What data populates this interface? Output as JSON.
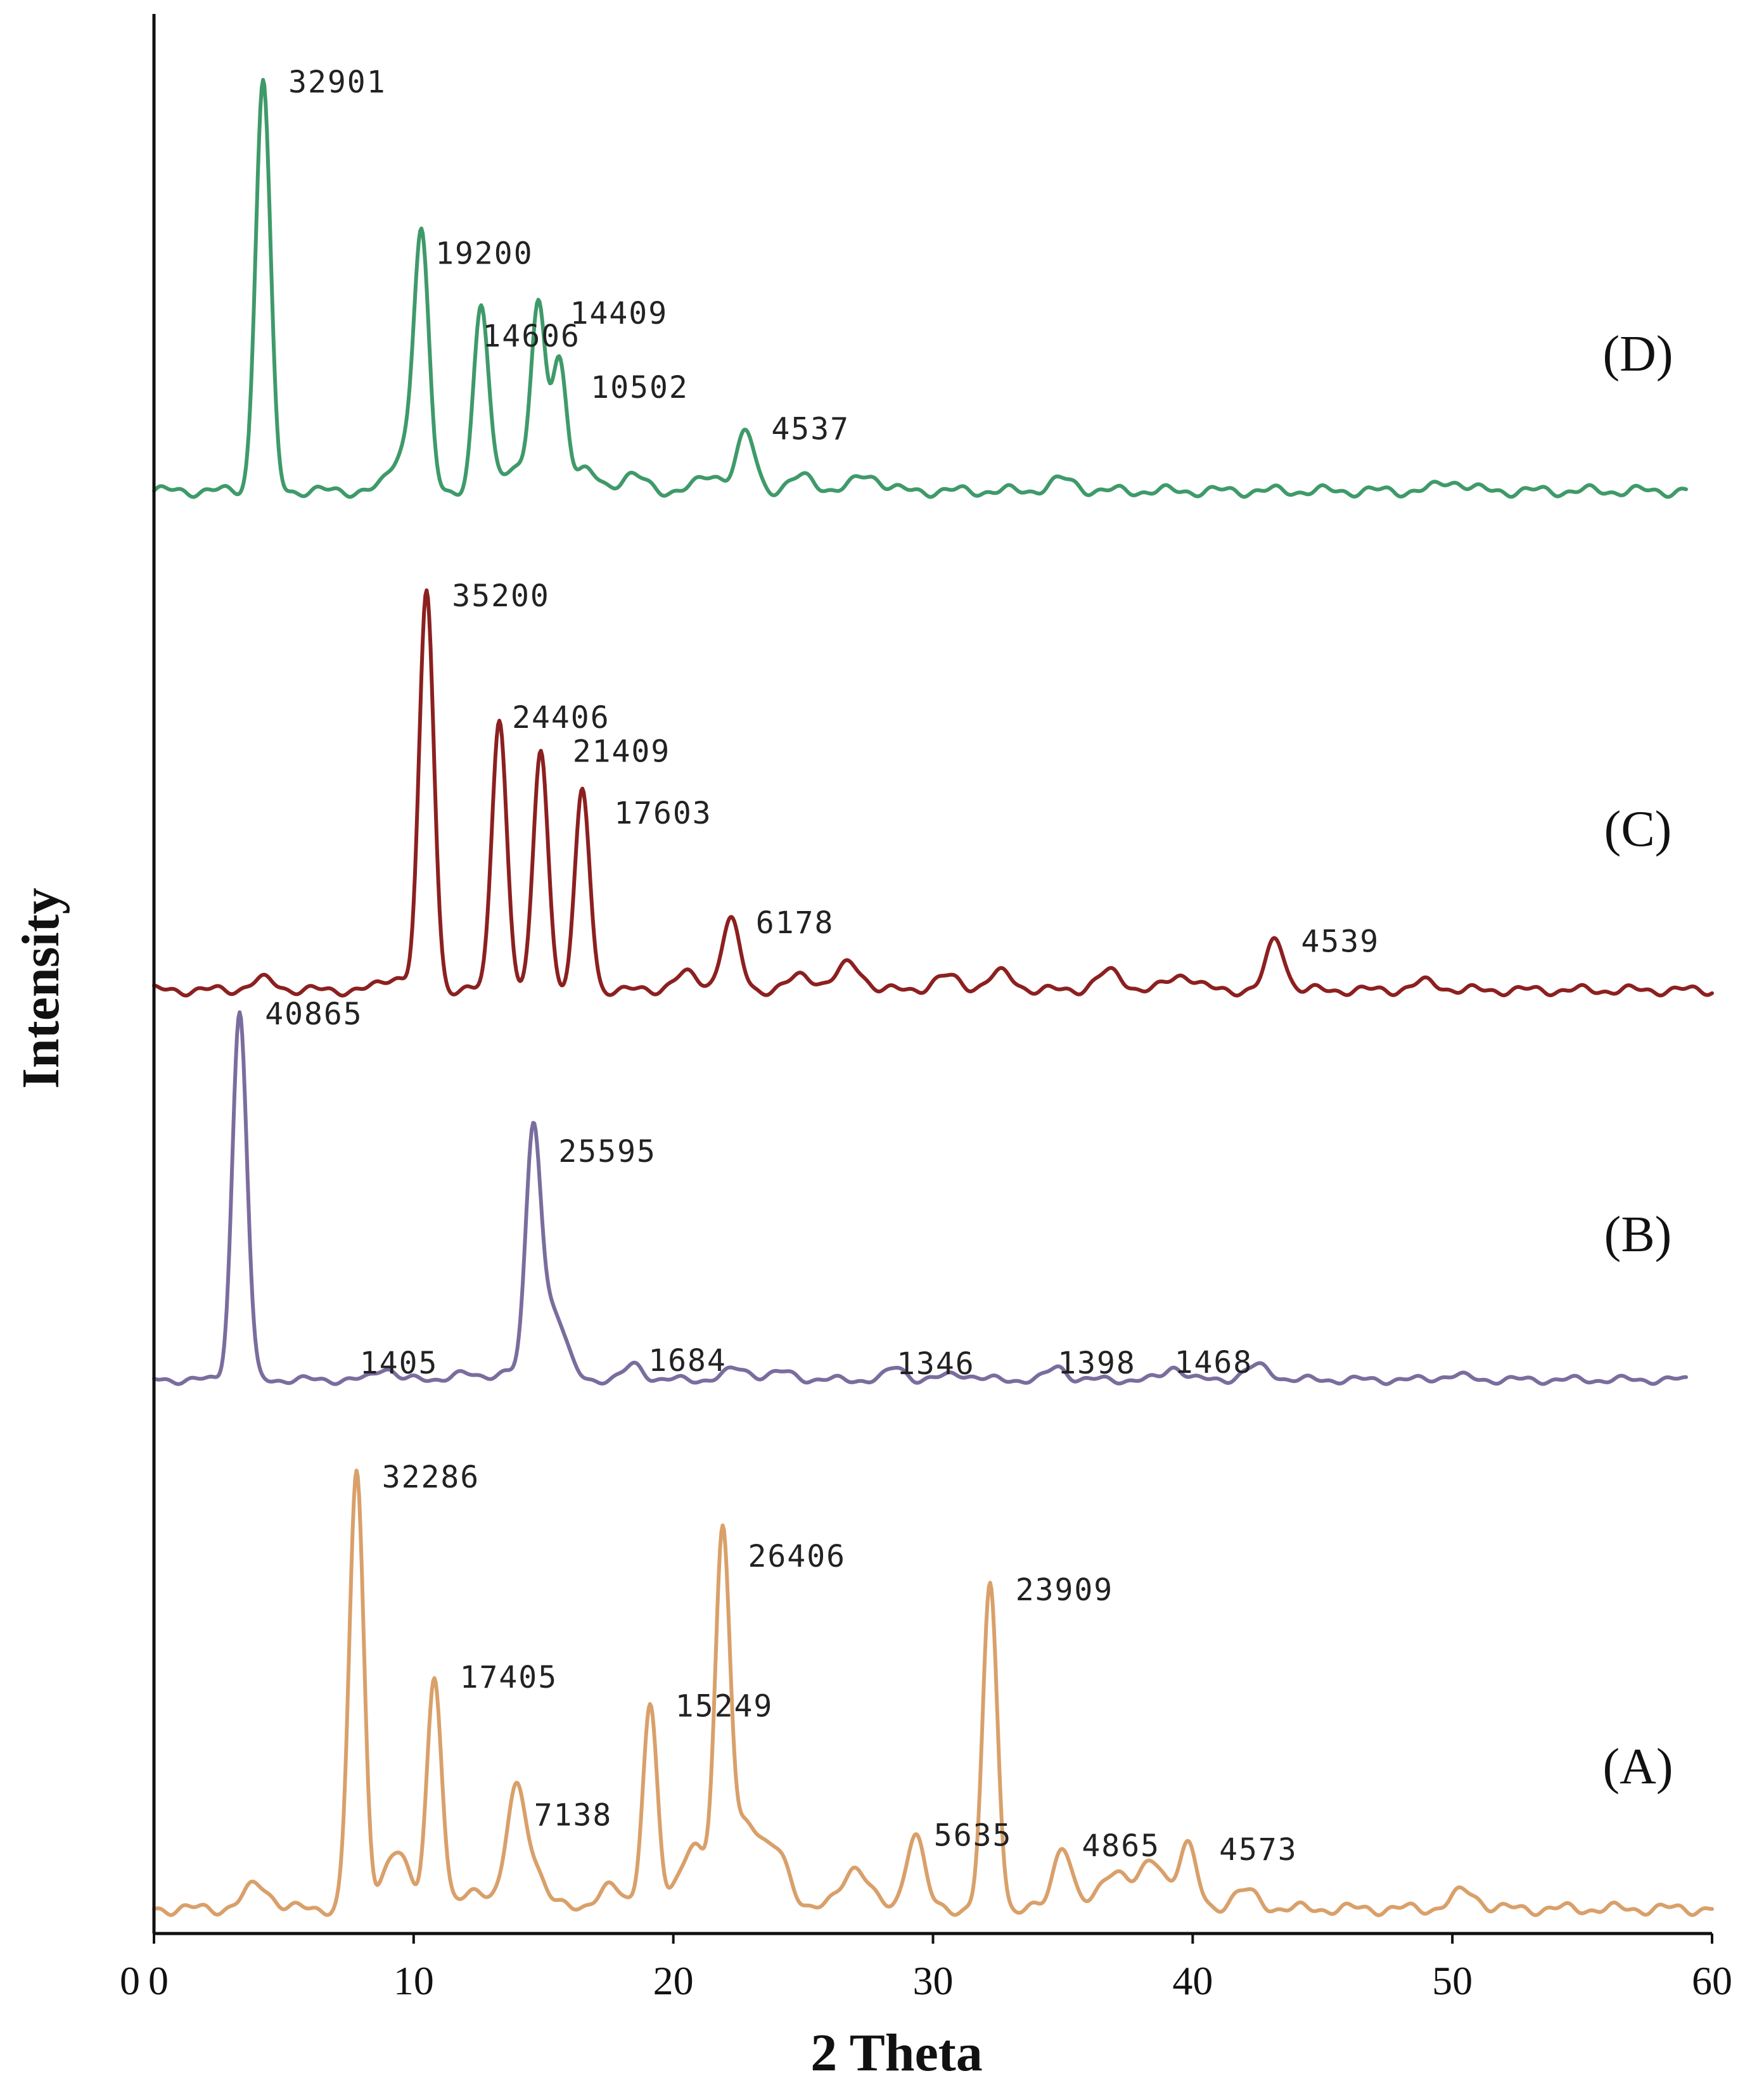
{
  "chart_data": {
    "type": "line",
    "xlabel": "2 Theta",
    "ylabel": "Intensity",
    "xlim": [
      0,
      60
    ],
    "xticks": [
      {
        "value": 0,
        "label": "0"
      },
      {
        "value": 10,
        "label": "10"
      },
      {
        "value": 20,
        "label": "20"
      },
      {
        "value": 30,
        "label": "30"
      },
      {
        "value": 40,
        "label": "40"
      },
      {
        "value": 50,
        "label": "50"
      },
      {
        "value": 60,
        "label": "60"
      }
    ],
    "origin_labels": [
      "0",
      "0"
    ],
    "grid": false,
    "legend": "none",
    "stacked_offset": true,
    "series": [
      {
        "name": "(D)",
        "color": "#3f9a6a",
        "x_end": 59,
        "peaks": [
          {
            "x": 4.2,
            "y": 32901,
            "label": "32901"
          },
          {
            "x": 10.3,
            "y": 19200,
            "label": "19200"
          },
          {
            "x": 12.6,
            "y": 14606,
            "label": "14606"
          },
          {
            "x": 14.8,
            "y": 14409,
            "label": "14409"
          },
          {
            "x": 15.6,
            "y": 10502,
            "label": "10502"
          },
          {
            "x": 22.8,
            "y": 4537,
            "label": "4537"
          }
        ],
        "minor_peaks": [
          [
            9.7,
            3500
          ],
          [
            13.8,
            2000
          ],
          [
            16.6,
            1500
          ],
          [
            18.4,
            1200
          ],
          [
            21.5,
            1300
          ],
          [
            25.0,
            1100
          ],
          [
            27.5,
            1300
          ],
          [
            35.0,
            900
          ],
          [
            50.0,
            800
          ]
        ]
      },
      {
        "name": "(C)",
        "color": "#8c2020",
        "x_end": 60,
        "peaks": [
          {
            "x": 10.5,
            "y": 35200,
            "label": "35200"
          },
          {
            "x": 13.3,
            "y": 24406,
            "label": "24406"
          },
          {
            "x": 14.9,
            "y": 21409,
            "label": "21409"
          },
          {
            "x": 16.5,
            "y": 17603,
            "label": "17603"
          },
          {
            "x": 22.2,
            "y": 6178,
            "label": "6178"
          },
          {
            "x": 43.2,
            "y": 4539,
            "label": "4539"
          }
        ],
        "minor_peaks": [
          [
            4.2,
            900
          ],
          [
            9.3,
            1200
          ],
          [
            20.5,
            1400
          ],
          [
            25.0,
            1300
          ],
          [
            26.8,
            2300
          ],
          [
            30.5,
            1200
          ],
          [
            32.6,
            1500
          ],
          [
            36.8,
            1600
          ],
          [
            39.6,
            1400
          ],
          [
            49.0,
            700
          ]
        ]
      },
      {
        "name": "(B)",
        "color": "#7a6d9e",
        "x_end": 59,
        "peaks": [
          {
            "x": 3.3,
            "y": 40865,
            "label": "40865"
          },
          {
            "x": 14.6,
            "y": 25595,
            "label": "25595"
          },
          {
            "x": 8.9,
            "y": 1405,
            "label": "1405"
          },
          {
            "x": 18.5,
            "y": 1684,
            "label": "1684"
          },
          {
            "x": 28.6,
            "y": 1346,
            "label": "1346"
          },
          {
            "x": 34.8,
            "y": 1398,
            "label": "1398"
          },
          {
            "x": 39.3,
            "y": 1468,
            "label": "1468"
          }
        ],
        "minor_peaks": [
          [
            11.8,
            600
          ],
          [
            13.5,
            900
          ],
          [
            15.3,
            8000
          ],
          [
            22.5,
            1200
          ],
          [
            24.2,
            800
          ],
          [
            31.0,
            700
          ],
          [
            42.5,
            1500
          ],
          [
            50.0,
            500
          ]
        ]
      },
      {
        "name": "(A)",
        "color": "#d9a06a",
        "x_end": 60,
        "peaks": [
          {
            "x": 7.8,
            "y": 32286,
            "label": "32286"
          },
          {
            "x": 10.8,
            "y": 17405,
            "label": "17405"
          },
          {
            "x": 13.9,
            "y": 7138,
            "label": "7138"
          },
          {
            "x": 19.1,
            "y": 15249,
            "label": "15249"
          },
          {
            "x": 21.9,
            "y": 26406,
            "label": "26406"
          },
          {
            "x": 29.3,
            "y": 5635,
            "label": "5635"
          },
          {
            "x": 32.2,
            "y": 23909,
            "label": "23909"
          },
          {
            "x": 35.0,
            "y": 4865,
            "label": "4865"
          },
          {
            "x": 39.8,
            "y": 4573,
            "label": "4573"
          }
        ],
        "minor_peaks": [
          [
            4.0,
            1800
          ],
          [
            9.3,
            4200
          ],
          [
            12.5,
            1500
          ],
          [
            14.5,
            3500
          ],
          [
            17.5,
            1600
          ],
          [
            20.8,
            5000
          ],
          [
            22.8,
            6500
          ],
          [
            24.0,
            4000
          ],
          [
            27.0,
            3200
          ],
          [
            37.0,
            3000
          ],
          [
            38.5,
            3500
          ],
          [
            42.0,
            1300
          ],
          [
            50.5,
            1300
          ]
        ]
      }
    ]
  }
}
